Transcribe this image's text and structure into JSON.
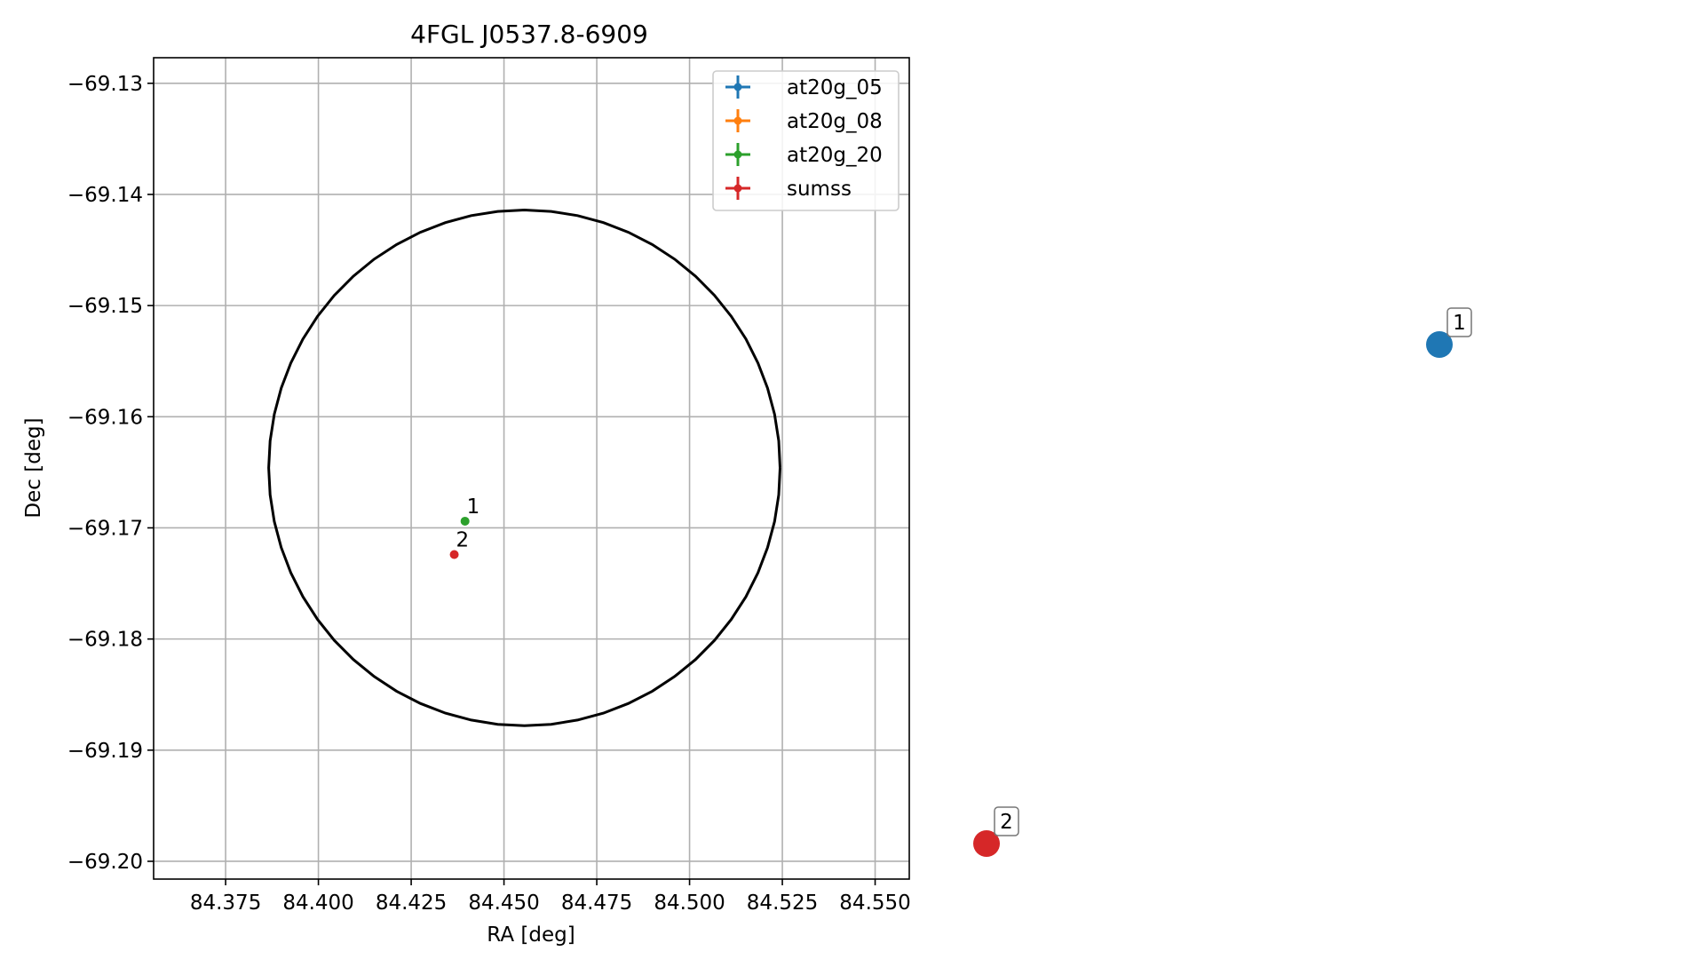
{
  "chart_data": {
    "type": "scatter",
    "title": "4FGL J0537.8-6909",
    "xlabel": "RA [deg]",
    "ylabel": "Dec [deg]",
    "xlim": [
      84.3556,
      84.5592
    ],
    "ylim": [
      -69.2016,
      -69.1277
    ],
    "grid": true,
    "legend_position": "upper right",
    "x_ticks": [
      84.375,
      84.4,
      84.425,
      84.45,
      84.475,
      84.5,
      84.525,
      84.55
    ],
    "x_tick_labels": [
      "84.375",
      "84.400",
      "84.425",
      "84.450",
      "84.475",
      "84.500",
      "84.525",
      "84.550"
    ],
    "y_ticks": [
      -69.13,
      -69.14,
      -69.15,
      -69.16,
      -69.17,
      -69.18,
      -69.19,
      -69.2
    ],
    "y_tick_labels": [
      "−69.13",
      "−69.14",
      "−69.15",
      "−69.16",
      "−69.17",
      "−69.18",
      "−69.19",
      "−69.20"
    ],
    "legend": [
      {
        "name": "at20g_05",
        "color": "#1f77b4"
      },
      {
        "name": "at20g_08",
        "color": "#ff7f0e"
      },
      {
        "name": "at20g_20",
        "color": "#2ca02c"
      },
      {
        "name": "sumss",
        "color": "#d62728"
      }
    ],
    "points": [
      {
        "label": "1",
        "ra": 84.4395,
        "dec": -69.1694,
        "color": "#2ca02c"
      },
      {
        "label": "2",
        "ra": 84.4366,
        "dec": -69.1724,
        "color": "#d62728"
      }
    ],
    "ellipse": {
      "center_ra": 84.4555,
      "center_dec": -69.1646,
      "semi_ra": 0.0689,
      "semi_dec": 0.0232,
      "color": "#000000"
    },
    "outside_markers": [
      {
        "label": "1",
        "color": "#1f77b4"
      },
      {
        "label": "2",
        "color": "#d62728"
      }
    ]
  }
}
